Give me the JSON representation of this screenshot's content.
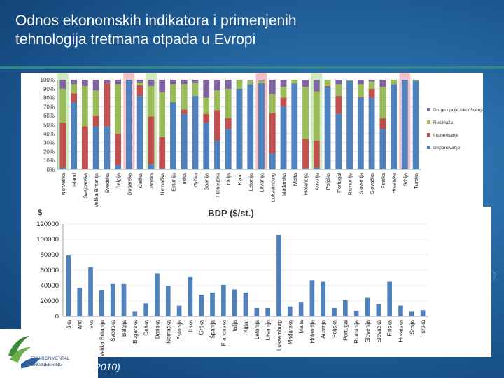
{
  "slide": {
    "title_line1": "Odnos ekonomskih indikatora i primenjenih",
    "title_line2": "tehnologija tretmana otpada u Evropi",
    "source_text": "2010)",
    "logo_text_line1": "ENVIRONMENTAL",
    "logo_text_line2": "ENGINEERING"
  },
  "chart_data": [
    {
      "type": "bar",
      "stacked": true,
      "title": "",
      "ylabel": "",
      "ylim": [
        0,
        100
      ],
      "yticks": [
        "0%",
        "10%",
        "20%",
        "30%",
        "40%",
        "50%",
        "60%",
        "70%",
        "80%",
        "90%",
        "100%"
      ],
      "categories": [
        "Norveška",
        "Island",
        "Švajcarska",
        "Velika Britanija",
        "Švedska",
        "Belgija",
        "Bugarska",
        "Češka",
        "Danska",
        "Nemačka",
        "Estonija",
        "Irska",
        "Grčka",
        "Španija",
        "Francuska",
        "Italija",
        "Kipar",
        "Letonija",
        "Litvanija",
        "Luksemburg",
        "Mađarska",
        "Malta",
        "Holandija",
        "Austrija",
        "Poljska",
        "Portugal",
        "Rumunija",
        "Slovenija",
        "Slovačka",
        "Finska",
        "Hrvatska",
        "Srbija",
        "Turska"
      ],
      "highlight_green": [
        "Norveška",
        "Danska",
        "Austrija"
      ],
      "highlight_red": [
        "Bugarska",
        "Litvanija",
        "Srbija"
      ],
      "legend_position": "right",
      "series": [
        {
          "name": "Deponovanje",
          "color": "#4f81bd",
          "values": [
            2,
            75,
            0,
            48,
            48,
            5,
            100,
            82,
            6,
            1,
            75,
            62,
            82,
            52,
            32,
            45,
            90,
            95,
            96,
            18,
            70,
            96,
            1,
            2,
            92,
            62,
            99,
            80,
            80,
            45,
            95,
            100,
            99
          ]
        },
        {
          "name": "Insinerisanje",
          "color": "#c0504d",
          "values": [
            50,
            10,
            48,
            12,
            48,
            35,
            0,
            12,
            53,
            35,
            0,
            5,
            0,
            10,
            34,
            12,
            0,
            0,
            0,
            45,
            10,
            0,
            33,
            30,
            1,
            20,
            0,
            1,
            10,
            12,
            0,
            0,
            0
          ]
        },
        {
          "name": "Reciklaža",
          "color": "#9bbb59",
          "values": [
            38,
            10,
            45,
            28,
            0,
            55,
            0,
            3,
            34,
            50,
            20,
            28,
            15,
            18,
            22,
            33,
            10,
            4,
            3,
            21,
            12,
            4,
            58,
            55,
            7,
            13,
            1,
            14,
            8,
            35,
            5,
            0,
            1
          ]
        },
        {
          "name": "Drugo opcije iskorišćenja",
          "color": "#8064a2",
          "values": [
            10,
            5,
            7,
            12,
            4,
            5,
            0,
            3,
            7,
            14,
            5,
            5,
            3,
            20,
            12,
            10,
            0,
            1,
            1,
            16,
            8,
            0,
            8,
            13,
            0,
            5,
            0,
            5,
            2,
            8,
            0,
            0,
            0
          ]
        }
      ]
    },
    {
      "type": "bar",
      "title": "BDP ($/st.)",
      "ylabel": "$",
      "ylim": [
        0,
        120000
      ],
      "yticks": [
        "0",
        "20000",
        "40000",
        "60000",
        "80000",
        "100000",
        "120000"
      ],
      "categories": [
        "Norveška",
        "Island",
        "Švajcarska",
        "Velika Britanija",
        "Švedska",
        "Belgija",
        "Bugarska",
        "Češka",
        "Danska",
        "Nemačka",
        "Estonija",
        "Irska",
        "Grčka",
        "Španija",
        "Francuska",
        "Italija",
        "Kipar",
        "Letonija",
        "Litvanija",
        "Luksemburg",
        "Mađarska",
        "Malta",
        "Holandija",
        "Austrija",
        "Poljska",
        "Portugal",
        "Rumunija",
        "Slovenija",
        "Slovačka",
        "Finska",
        "Hrvatska",
        "Srbija",
        "Turska"
      ],
      "series": [
        {
          "name": "BDP",
          "color": "#4f81bd",
          "values": [
            79000,
            37000,
            64000,
            34000,
            42000,
            42000,
            6000,
            17000,
            56000,
            40000,
            14000,
            51000,
            28000,
            31000,
            41000,
            35000,
            31000,
            11000,
            11000,
            106000,
            13000,
            18000,
            47000,
            45000,
            11000,
            21000,
            7000,
            24000,
            16000,
            45000,
            14000,
            6000,
            8000
          ]
        }
      ]
    }
  ]
}
